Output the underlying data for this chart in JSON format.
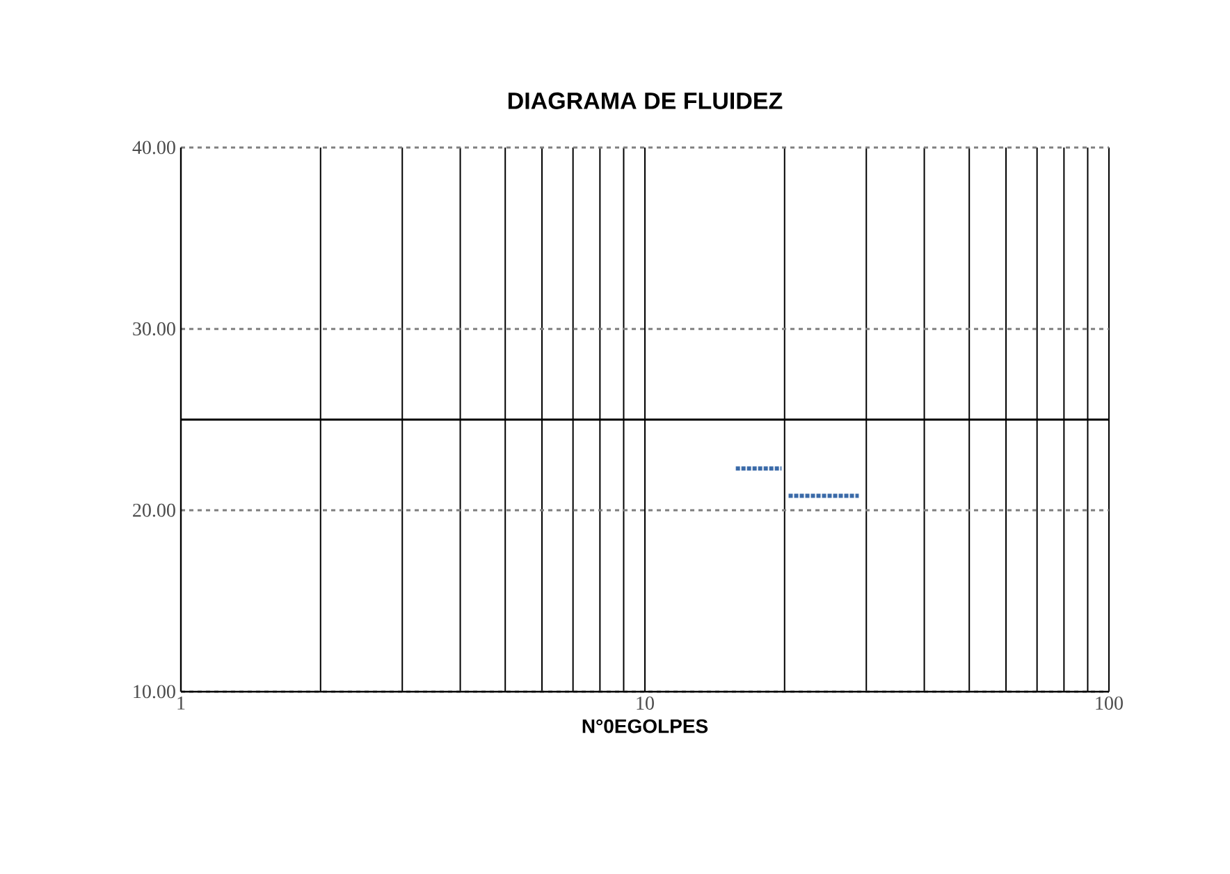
{
  "chart_data": {
    "type": "line",
    "title": "DIAGRAMA  DE FLUIDEZ",
    "xlabel": "N°0EGOLPES",
    "log": "x",
    "xlim": [
      1,
      100
    ],
    "xticks": [
      1,
      10,
      100
    ],
    "ylim": [
      10,
      40
    ],
    "yticks": [
      {
        "value": 10,
        "label": "10.00"
      },
      {
        "value": 20,
        "label": "20.00"
      },
      {
        "value": 30,
        "label": "30.00"
      },
      {
        "value": 40,
        "label": "40.00"
      }
    ],
    "grid": true,
    "marker": "none",
    "line_style": "dotted",
    "ref_lines": [
      {
        "axis": "y",
        "value": 25,
        "color": "#000000",
        "line_style": "solid"
      }
    ],
    "x": [
      15.7,
      19.7,
      20,
      20.4,
      28.9
    ],
    "series": [
      {
        "color": "#3a6aa8",
        "values": [
          22.3,
          22.3,
          null,
          20.8,
          20.8
        ]
      }
    ]
  }
}
